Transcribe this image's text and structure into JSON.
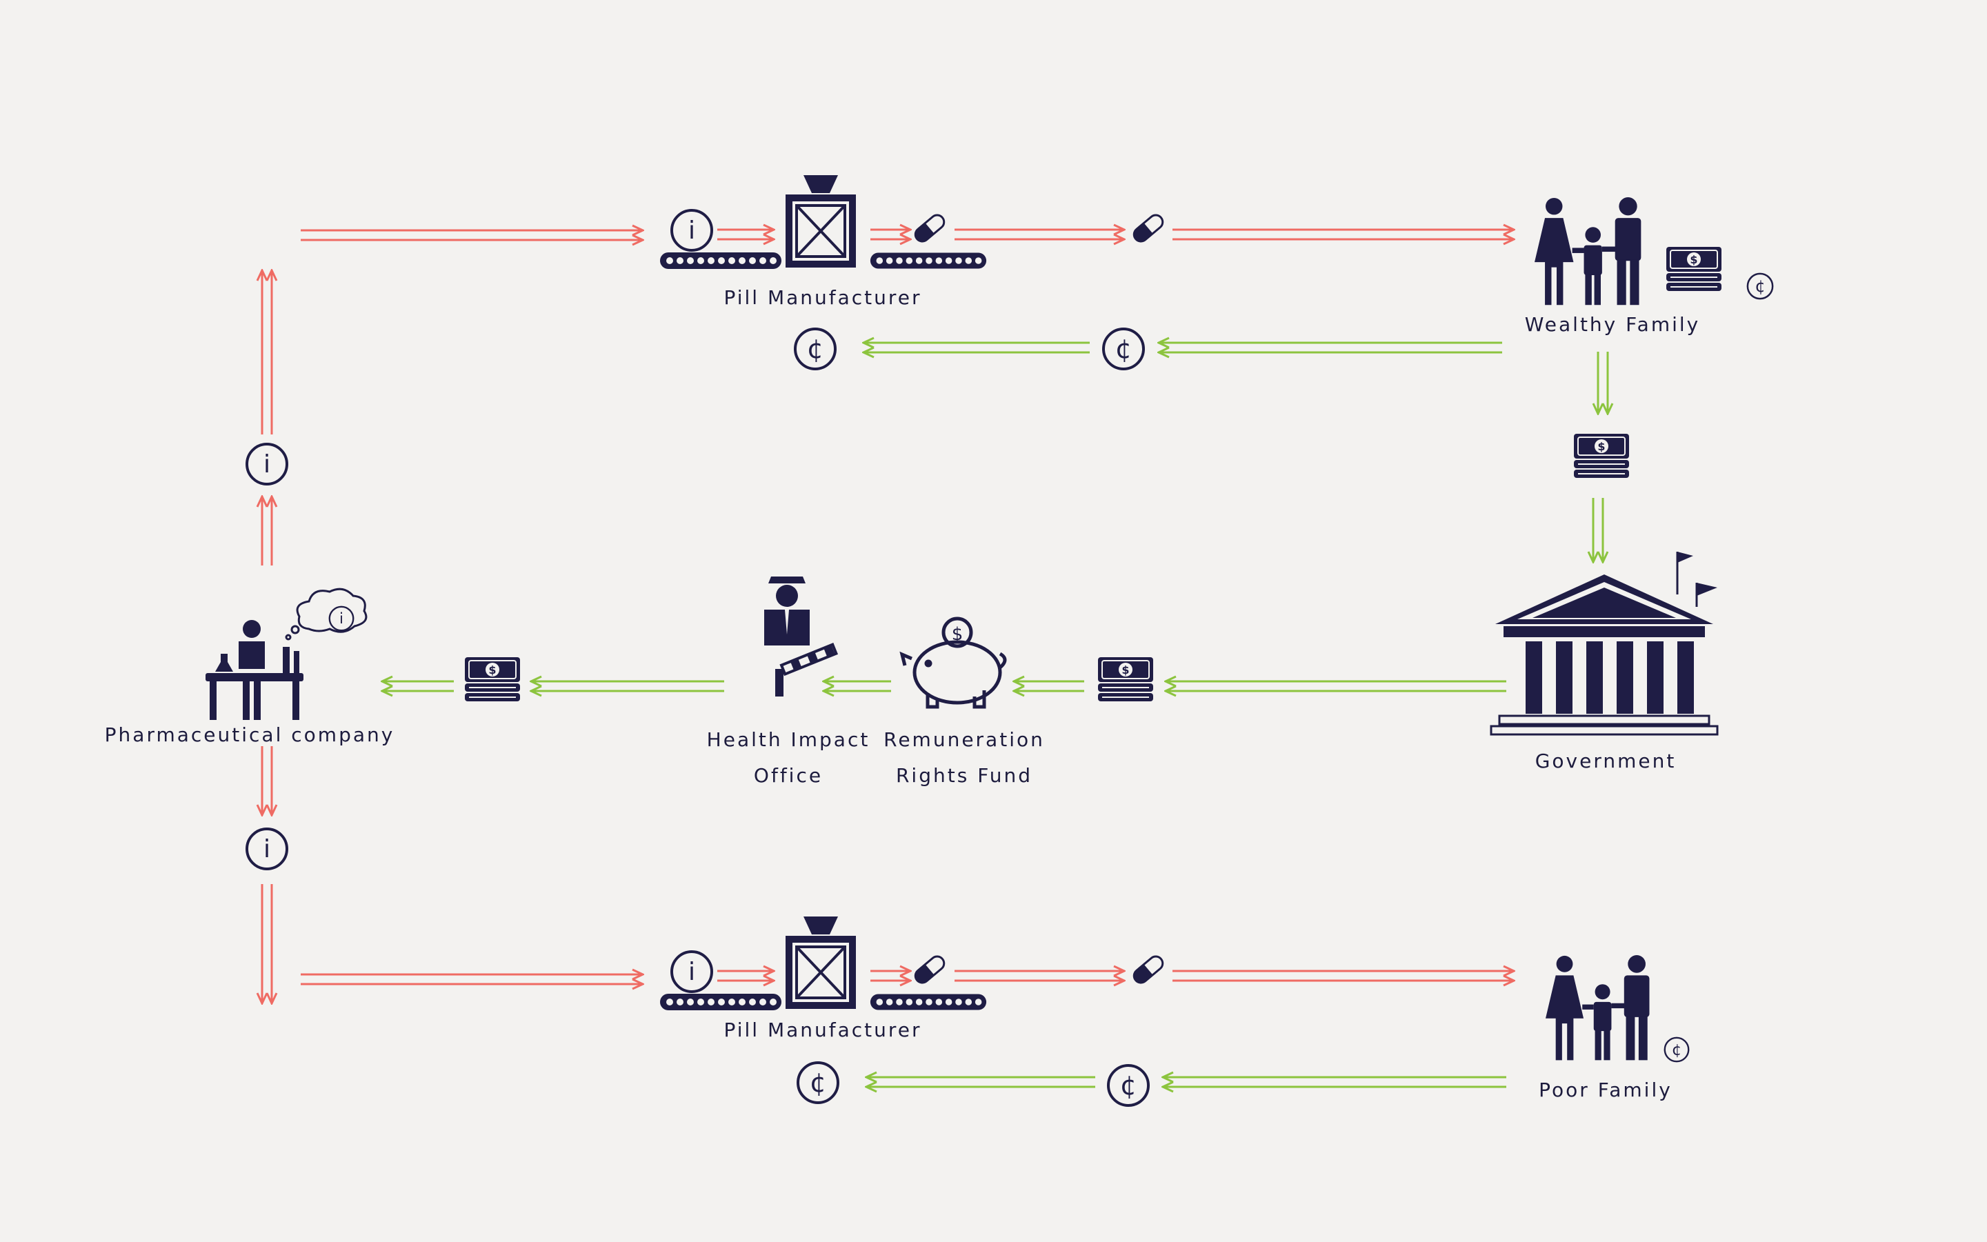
{
  "colors": {
    "information_flow": "#ef6b63",
    "money_flow": "#8cc43e",
    "icon": "#1f1d45",
    "background": "#f3f2f0"
  },
  "nodes": {
    "pill_manufacturer_top": "Pill Manufacturer",
    "wealthy_family": "Wealthy Family",
    "pharmaceutical_company": "Pharmaceutical company",
    "health_impact_office": [
      "Health Impact",
      "Office"
    ],
    "remuneration_rights_fund": [
      "Remuneration",
      "Rights Fund"
    ],
    "government": "Government",
    "pill_manufacturer_bottom": "Pill Manufacturer",
    "poor_family": "Poor Family"
  },
  "symbols": {
    "info": "i",
    "cent": "¢",
    "dollar": "$"
  }
}
